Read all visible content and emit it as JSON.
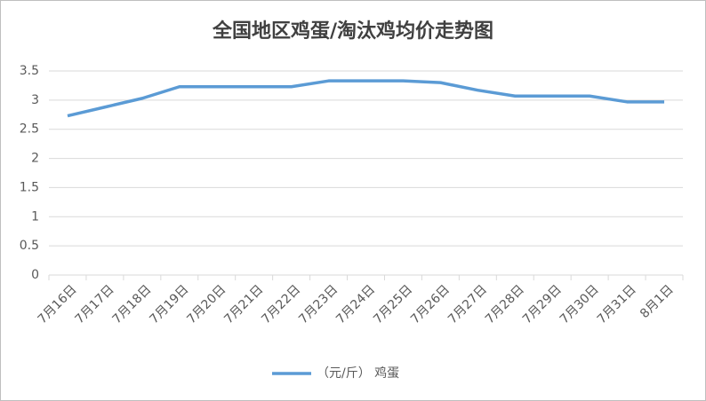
{
  "chart_data": {
    "type": "line",
    "title": "全国地区鸡蛋/淘汰鸡均价走势图",
    "categories": [
      "7月16日",
      "7月17日",
      "7月18日",
      "7月19日",
      "7月20日",
      "7月21日",
      "7月22日",
      "7月23日",
      "7月24日",
      "7月25日",
      "7月26日",
      "7月27日",
      "7月28日",
      "7月29日",
      "7月30日",
      "7月31日",
      "8月1日"
    ],
    "series": [
      {
        "name": "（元/斤） 鸡蛋",
        "color": "#5b9bd5",
        "values": [
          2.73,
          2.88,
          3.03,
          3.23,
          3.23,
          3.23,
          3.23,
          3.33,
          3.33,
          3.33,
          3.3,
          3.17,
          3.07,
          3.07,
          3.07,
          2.97,
          2.97
        ]
      }
    ],
    "ylim": [
      0,
      3.5
    ],
    "yticks": [
      0,
      0.5,
      1,
      1.5,
      2,
      2.5,
      3,
      3.5
    ],
    "grid": true,
    "legend": "bottom"
  }
}
